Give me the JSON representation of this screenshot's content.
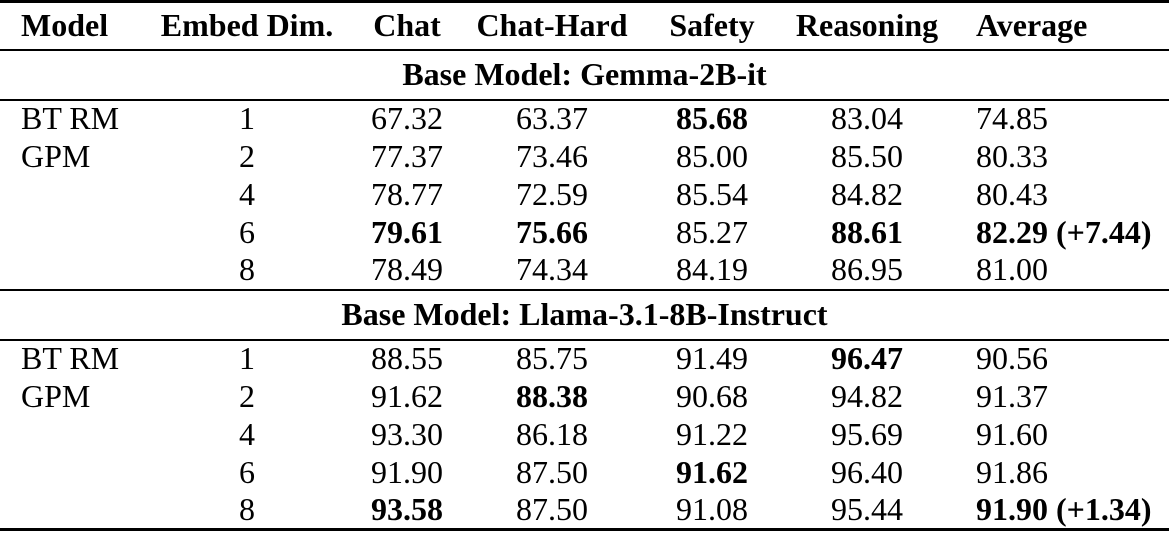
{
  "table": {
    "columns": [
      "Model",
      "Embed Dim.",
      "Chat",
      "Chat-Hard",
      "Safety",
      "Reasoning",
      "Average"
    ],
    "sections": [
      {
        "title": "Base Model: Gemma-2B-it",
        "rows": [
          {
            "model": "BT RM",
            "dim": "1",
            "values": [
              "67.32",
              "63.37",
              "85.68",
              "83.04",
              "74.85"
            ],
            "bold": [
              2
            ]
          },
          {
            "model": "GPM",
            "dim": "2",
            "values": [
              "77.37",
              "73.46",
              "85.00",
              "85.50",
              "80.33"
            ],
            "bold": []
          },
          {
            "model": "",
            "dim": "4",
            "values": [
              "78.77",
              "72.59",
              "85.54",
              "84.82",
              "80.43"
            ],
            "bold": []
          },
          {
            "model": "",
            "dim": "6",
            "values": [
              "79.61",
              "75.66",
              "85.27",
              "88.61",
              "82.29 (+7.44)"
            ],
            "bold": [
              0,
              1,
              3,
              4
            ]
          },
          {
            "model": "",
            "dim": "8",
            "values": [
              "78.49",
              "74.34",
              "84.19",
              "86.95",
              "81.00"
            ],
            "bold": []
          }
        ]
      },
      {
        "title": "Base Model: Llama-3.1-8B-Instruct",
        "rows": [
          {
            "model": "BT RM",
            "dim": "1",
            "values": [
              "88.55",
              "85.75",
              "91.49",
              "96.47",
              "90.56"
            ],
            "bold": [
              3
            ]
          },
          {
            "model": "GPM",
            "dim": "2",
            "values": [
              "91.62",
              "88.38",
              "90.68",
              "94.82",
              "91.37"
            ],
            "bold": [
              1
            ]
          },
          {
            "model": "",
            "dim": "4",
            "values": [
              "93.30",
              "86.18",
              "91.22",
              "95.69",
              "91.60"
            ],
            "bold": []
          },
          {
            "model": "",
            "dim": "6",
            "values": [
              "91.90",
              "87.50",
              "91.62",
              "96.40",
              "91.86"
            ],
            "bold": [
              2
            ]
          },
          {
            "model": "",
            "dim": "8",
            "values": [
              "93.58",
              "87.50",
              "91.08",
              "95.44",
              "91.90 (+1.34)"
            ],
            "bold": [
              0,
              4
            ]
          }
        ]
      }
    ],
    "colors": {
      "text": "#000000",
      "background": "#ffffff",
      "rule": "#000000"
    }
  }
}
